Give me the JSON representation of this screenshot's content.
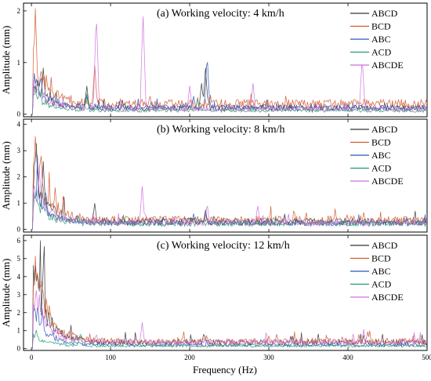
{
  "chart_data": {
    "type": "line",
    "xlabel": "Frequency (Hz)",
    "xlim": [
      -10,
      500
    ],
    "xticks": [
      0,
      100,
      200,
      300,
      400,
      500
    ],
    "legend_position": "top-right",
    "series_names": [
      "ABCD",
      "BCD",
      "ABC",
      "ACD",
      "ABCDE"
    ],
    "series_colors": [
      "#333333",
      "#d4582f",
      "#2f54b5",
      "#1f9a6a",
      "#cf6fdf"
    ],
    "panels": [
      {
        "title": "(a) Working velocity: 4 km/h",
        "ylabel": "Amplitude (mm)",
        "ylim": [
          -0.05,
          2.15
        ],
        "yticks": [
          0,
          1,
          2
        ],
        "base": [
          0.12,
          0.2,
          0.13,
          0.07,
          0.1
        ],
        "decay": [
          0.5,
          1.0,
          0.6,
          0.35,
          0.5
        ],
        "peaks": [
          [
            [
              8,
              0.75
            ],
            [
              15,
              0.9
            ],
            [
              70,
              0.55
            ],
            [
              215,
              0.6
            ],
            [
              220,
              0.9
            ],
            [
              340,
              0.2
            ]
          ],
          [
            [
              5,
              2.05
            ],
            [
              12,
              0.95
            ],
            [
              80,
              0.95
            ],
            [
              150,
              0.35
            ],
            [
              410,
              0.22
            ]
          ],
          [
            [
              6,
              0.7
            ],
            [
              12,
              0.8
            ],
            [
              70,
              0.35
            ],
            [
              205,
              0.35
            ],
            [
              222,
              1.15
            ]
          ],
          [
            [
              5,
              0.55
            ],
            [
              10,
              0.45
            ],
            [
              70,
              0.4
            ],
            [
              210,
              0.3
            ]
          ],
          [
            [
              82,
              2.0
            ],
            [
              141,
              2.02
            ],
            [
              200,
              0.55
            ],
            [
              280,
              0.6
            ],
            [
              418,
              1.1
            ]
          ]
        ]
      },
      {
        "title": "(b) Working velocity: 8 km/h",
        "ylabel": "Amplitude (mm)",
        "ylim": [
          -0.1,
          4.2
        ],
        "yticks": [
          0,
          1,
          2,
          3,
          4
        ],
        "base": [
          0.3,
          0.35,
          0.25,
          0.22,
          0.25
        ],
        "decay": [
          2.0,
          2.6,
          1.2,
          1.0,
          1.5
        ],
        "peaks": [
          [
            [
              6,
              3.5
            ],
            [
              15,
              2.6
            ],
            [
              80,
              1.0
            ],
            [
              220,
              0.75
            ],
            [
              420,
              0.35
            ]
          ],
          [
            [
              5,
              3.55
            ],
            [
              12,
              3.2
            ],
            [
              30,
              1.6
            ],
            [
              320,
              0.6
            ],
            [
              420,
              0.65
            ]
          ],
          [
            [
              8,
              1.8
            ],
            [
              18,
              1.6
            ],
            [
              205,
              0.6
            ],
            [
              220,
              0.65
            ]
          ],
          [
            [
              6,
              1.6
            ],
            [
              14,
              1.5
            ],
            [
              60,
              0.5
            ],
            [
              210,
              0.5
            ]
          ],
          [
            [
              10,
              2.4
            ],
            [
              140,
              1.65
            ],
            [
              222,
              1.0
            ],
            [
              286,
              0.95
            ]
          ]
        ]
      },
      {
        "title": "(c) Working velocity: 12 km/h",
        "ylabel": "Amplitude (mm)",
        "ylim": [
          -0.1,
          6.3
        ],
        "yticks": [
          0,
          1,
          2,
          3,
          4,
          5,
          6
        ],
        "base": [
          0.35,
          0.4,
          0.2,
          0.15,
          0.35
        ],
        "decay": [
          4.0,
          4.6,
          2.0,
          0.6,
          3.0
        ],
        "peaks": [
          [
            [
              8,
              4.7
            ],
            [
              15,
              4.6
            ],
            [
              218,
              0.9
            ],
            [
              330,
              0.7
            ],
            [
              420,
              0.75
            ]
          ],
          [
            [
              5,
              5.15
            ],
            [
              12,
              4.3
            ],
            [
              310,
              0.8
            ],
            [
              425,
              0.95
            ]
          ],
          [
            [
              8,
              2.6
            ],
            [
              14,
              2.3
            ],
            [
              330,
              0.4
            ]
          ],
          [
            [
              6,
              1.1
            ],
            [
              62,
              0.9
            ]
          ],
          [
            [
              10,
              3.0
            ],
            [
              82,
              0.85
            ],
            [
              140,
              1.45
            ],
            [
              330,
              0.55
            ],
            [
              420,
              0.6
            ]
          ]
        ]
      }
    ]
  }
}
